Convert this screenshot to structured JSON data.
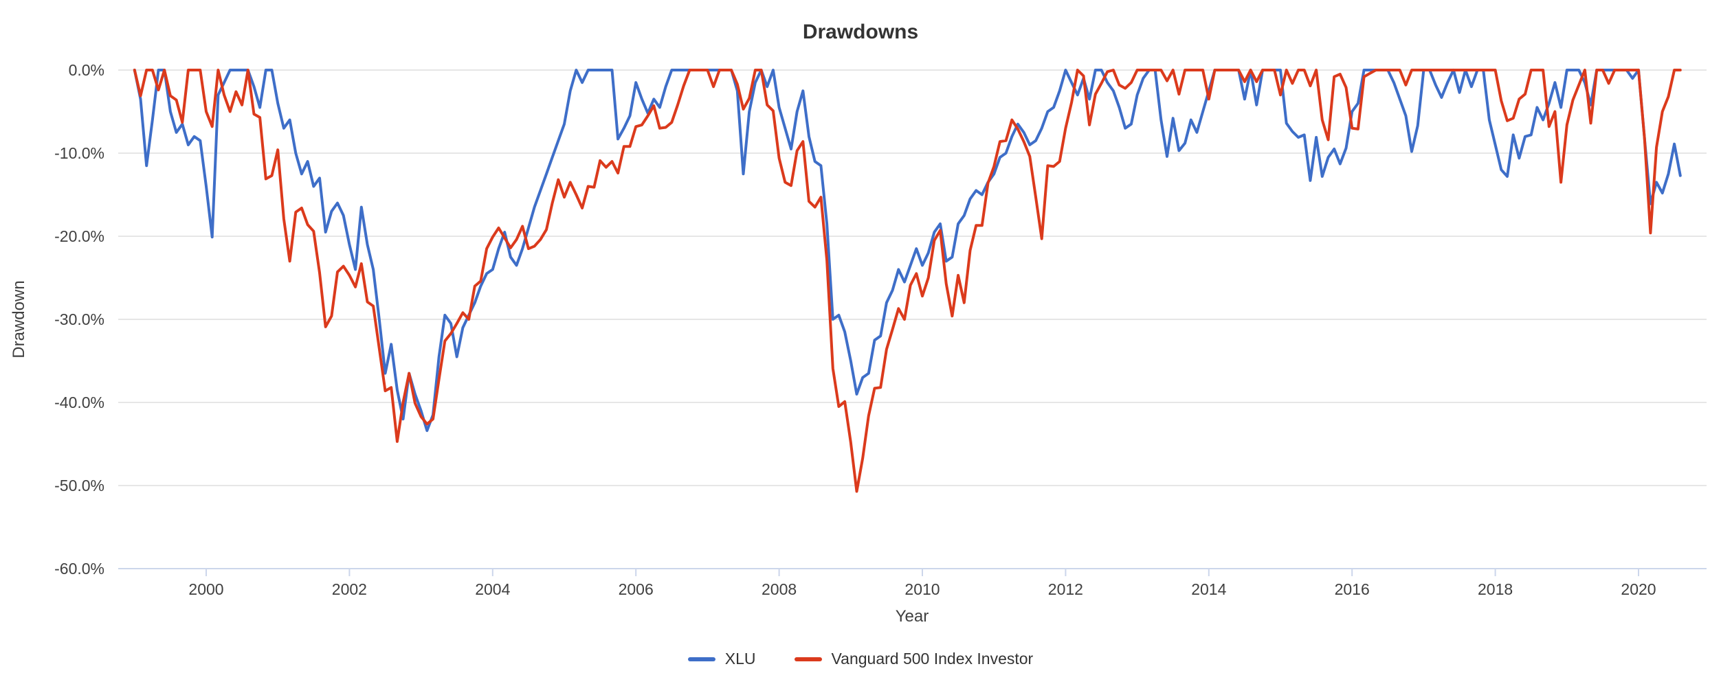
{
  "chart": {
    "colors": {
      "xlu_line": "#3E6EC8",
      "vanguard_line": "#DB3A1C",
      "gridline": "#E6E6E6",
      "axis_line": "#CCD6EB",
      "tick_text": "#404040",
      "title_text": "#333333",
      "background": "#FFFFFF"
    }
  },
  "chart_data": {
    "type": "line",
    "title": "Drawdowns",
    "xlabel": "Year",
    "ylabel": "Drawdown",
    "legend_position": "bottom",
    "grid": true,
    "ylim": [
      -60,
      0
    ],
    "xlim_years": [
      1998.77,
      2020.95
    ],
    "x_start_year": 1999,
    "x_start_month": 1,
    "frequency": "monthly",
    "y_ticks": [
      {
        "label": "0.0%",
        "value": 0
      },
      {
        "label": "-10.0%",
        "value": -10
      },
      {
        "label": "-20.0%",
        "value": -20
      },
      {
        "label": "-30.0%",
        "value": -30
      },
      {
        "label": "-40.0%",
        "value": -40
      },
      {
        "label": "-50.0%",
        "value": -50
      },
      {
        "label": "-60.0%",
        "value": -60
      }
    ],
    "x_ticks": [
      "2000",
      "2002",
      "2004",
      "2006",
      "2008",
      "2010",
      "2012",
      "2014",
      "2016",
      "2018",
      "2020"
    ],
    "series": [
      {
        "name": "XLU",
        "color": "#3E6EC8",
        "values": [
          0,
          -3.5,
          -11.5,
          -6,
          0,
          0,
          -5,
          -7.5,
          -6.5,
          -9,
          -8,
          -8.5,
          -14,
          -20.1,
          -3,
          -1.5,
          0,
          0,
          0,
          0,
          -2,
          -4.5,
          0,
          0,
          -4,
          -7,
          -6,
          -10,
          -12.5,
          -11,
          -14,
          -13,
          -19.5,
          -17,
          -16,
          -17.5,
          -21,
          -24,
          -16.5,
          -21,
          -24,
          -30,
          -36.5,
          -33,
          -38.5,
          -42,
          -36.5,
          -39,
          -41,
          -43.4,
          -41.5,
          -34.5,
          -29.5,
          -30.5,
          -34.5,
          -31,
          -29.5,
          -28,
          -26,
          -24.5,
          -24,
          -21.5,
          -19.5,
          -22.5,
          -23.5,
          -21.5,
          -19,
          -16.5,
          -14.5,
          -12.5,
          -10.5,
          -8.5,
          -6.5,
          -2.5,
          0,
          -1.5,
          0,
          0,
          0,
          0,
          0,
          -8.3,
          -7,
          -5.5,
          -1.5,
          -3.5,
          -5.2,
          -3.5,
          -4.5,
          -2,
          0,
          0,
          0,
          0,
          0,
          0,
          0,
          0,
          0,
          0,
          0,
          -2.5,
          -12.5,
          -5,
          -1.5,
          0,
          -2,
          0,
          -4.5,
          -7,
          -9.5,
          -5,
          -2.5,
          -8,
          -11,
          -11.5,
          -18.5,
          -30,
          -29.5,
          -31.5,
          -35,
          -39,
          -37,
          -36.5,
          -32.5,
          -32,
          -28,
          -26.5,
          -24,
          -25.5,
          -23.5,
          -21.5,
          -23.5,
          -22,
          -19.5,
          -18.5,
          -23,
          -22.5,
          -18.5,
          -17.5,
          -15.5,
          -14.5,
          -15,
          -13.5,
          -12.5,
          -10.5,
          -10,
          -8,
          -6.5,
          -7.5,
          -9,
          -8.5,
          -7,
          -5,
          -4.5,
          -2.5,
          0,
          -1.5,
          -3,
          -1,
          -3.5,
          0,
          0,
          -1.5,
          -2.5,
          -4.5,
          -7,
          -6.5,
          -3,
          -1,
          0,
          0,
          -6,
          -10.4,
          -5.8,
          -9.7,
          -8.8,
          -6,
          -7.5,
          -5,
          -2.5,
          0,
          0,
          0,
          0,
          0,
          -3.5,
          0,
          -4.2,
          0,
          0,
          0,
          0,
          -6.4,
          -7.4,
          -8.1,
          -7.8,
          -13.3,
          -8.1,
          -12.8,
          -10.5,
          -9.5,
          -11.3,
          -9.4,
          -5,
          -4,
          0,
          0,
          0,
          0,
          0,
          -1.5,
          -3.5,
          -5.5,
          -9.8,
          -6.7,
          0,
          0,
          -1.8,
          -3.3,
          -1.5,
          0,
          -2.7,
          0,
          -2,
          0,
          0,
          -6,
          -9,
          -12,
          -12.8,
          -7.8,
          -10.6,
          -8,
          -7.8,
          -4.5,
          -6,
          -4,
          -1.5,
          -4.5,
          0,
          0,
          0,
          -1.5,
          -4.2,
          0,
          0,
          0,
          0,
          0,
          0,
          -1,
          0,
          -8.2,
          -16.1,
          -13.5,
          -14.8,
          -12.5,
          -8.9,
          -12.7
        ]
      },
      {
        "name": "Vanguard 500 Index Investor",
        "color": "#DB3A1C",
        "values": [
          0,
          -3.1,
          0,
          0,
          -2.4,
          0,
          -3.1,
          -3.6,
          -6.3,
          0,
          0,
          0,
          -5,
          -6.8,
          0,
          -3,
          -5,
          -2.6,
          -4.2,
          0,
          -5.3,
          -5.7,
          -13.1,
          -12.7,
          -9.6,
          -17.9,
          -23,
          -17.1,
          -16.6,
          -18.6,
          -19.4,
          -24.4,
          -30.9,
          -29.6,
          -24.3,
          -23.6,
          -24.7,
          -26.1,
          -23.3,
          -27.9,
          -28.4,
          -33.5,
          -38.6,
          -38.2,
          -44.7,
          -40,
          -36.5,
          -40.1,
          -41.7,
          -42.6,
          -42,
          -37.2,
          -32.6,
          -31.7,
          -30.5,
          -29.2,
          -30,
          -26,
          -25.4,
          -21.5,
          -20.1,
          -19,
          -20.2,
          -21.4,
          -20.4,
          -18.8,
          -21.5,
          -21.2,
          -20.4,
          -19.2,
          -16,
          -13.2,
          -15.3,
          -13.5,
          -15,
          -16.6,
          -14,
          -14.1,
          -10.9,
          -11.7,
          -11,
          -12.4,
          -9.2,
          -9.2,
          -6.8,
          -6.6,
          -5.5,
          -4.3,
          -7,
          -6.9,
          -6.3,
          -4.2,
          -1.9,
          0,
          0,
          0,
          0,
          -2,
          0,
          0,
          0,
          -1.7,
          -4.7,
          -3.4,
          0,
          0,
          -4.2,
          -4.9,
          -10.6,
          -13.5,
          -13.9,
          -9.7,
          -8.6,
          -15.8,
          -16.5,
          -15.3,
          -22.9,
          -35.9,
          -40.5,
          -39.9,
          -44.8,
          -50.7,
          -46.7,
          -41.6,
          -38.3,
          -38.2,
          -33.6,
          -31.2,
          -28.7,
          -30,
          -25.9,
          -24.5,
          -27.2,
          -25,
          -20.5,
          -19.3,
          -25.7,
          -29.6,
          -24.7,
          -28,
          -21.7,
          -18.7,
          -18.7,
          -13.6,
          -11.6,
          -8.6,
          -8.5,
          -6,
          -7.1,
          -8.6,
          -10.4,
          -15.3,
          -20.3,
          -11.5,
          -11.6,
          -11,
          -7,
          -3.9,
          0,
          -0.7,
          -6.6,
          -2.9,
          -1.6,
          -0.2,
          0,
          -1.8,
          -2.2,
          -1.5,
          0,
          0,
          0,
          0,
          0,
          -1.3,
          0,
          -2.9,
          0,
          0,
          0,
          0,
          -3.5,
          0,
          0,
          0,
          0,
          0,
          -1.4,
          0,
          -1.4,
          0,
          0,
          0,
          -3,
          0,
          -1.6,
          0,
          0,
          -1.9,
          0,
          -6,
          -8.4,
          -0.8,
          -0.5,
          -2.1,
          -7,
          -7.1,
          -0.8,
          -0.4,
          0,
          0,
          0,
          0,
          0,
          -1.8,
          0,
          0,
          0,
          0,
          0,
          0,
          0,
          0,
          0,
          0,
          0,
          0,
          0,
          0,
          0,
          -3.7,
          -6.1,
          -5.8,
          -3.5,
          -2.9,
          0,
          0,
          0,
          -6.8,
          -5,
          -13.5,
          -6.6,
          -3.6,
          -1.8,
          0,
          -6.4,
          0,
          0,
          -1.6,
          0,
          0,
          0,
          0,
          0,
          -8.2,
          -19.6,
          -9.3,
          -5,
          -3.2,
          0,
          0
        ]
      }
    ]
  }
}
